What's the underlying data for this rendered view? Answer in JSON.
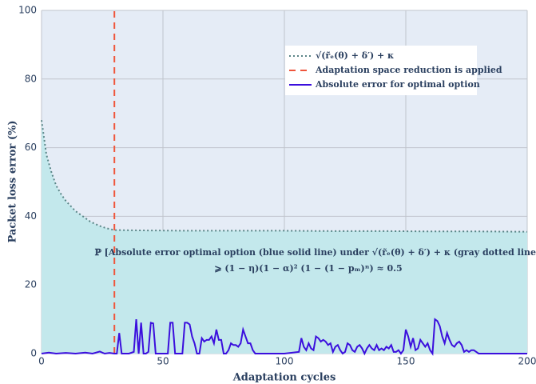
{
  "chart_data": {
    "type": "line",
    "xlabel": "Adaptation cycles",
    "ylabel": "Packet loss error (%)",
    "xlim": [
      0,
      200
    ],
    "ylim": [
      0,
      100
    ],
    "xticks": [
      0,
      50,
      100,
      150,
      200
    ],
    "yticks": [
      0,
      20,
      40,
      60,
      80,
      100
    ],
    "grid": true,
    "legend": "upper right",
    "annotations": [
      "ℙ [Absolute error optimal option (blue solid line) under √(r̃ₑ(θ) + δ′) + κ (gray dotted line)]",
      "⩾ (1 − η)(1 − α)² (1 − (1 − pₘ)ⁿ) ≈ 0.5"
    ],
    "series": [
      {
        "name": "√(r̃ₑ(θ) + δ′) + κ",
        "color": "#5a8587",
        "dash": "dot",
        "fill": "#c3e8ec",
        "x": [
          0,
          2,
          4,
          6,
          8,
          10,
          12,
          14,
          16,
          18,
          20,
          22,
          24,
          26,
          28,
          30,
          40,
          60,
          80,
          100,
          120,
          140,
          160,
          180,
          200
        ],
        "values": [
          68,
          58,
          53,
          49,
          46.5,
          44.5,
          43,
          41.5,
          40.5,
          39.5,
          38.5,
          37.8,
          37.2,
          36.7,
          36.3,
          36,
          35.9,
          35.8,
          35.8,
          35.8,
          35.7,
          35.7,
          35.6,
          35.6,
          35.5
        ]
      },
      {
        "name": "Adaptation space reduction is applied",
        "color": "#ef553b",
        "dash": "dash",
        "x": [
          30,
          30
        ],
        "values": [
          0,
          100
        ]
      },
      {
        "name": "Absolute error for optimal option",
        "color": "#3b0fdd",
        "dash": "solid",
        "x": [
          0,
          3,
          6,
          10,
          14,
          18,
          21,
          24,
          26,
          28,
          30,
          31,
          32,
          33,
          36,
          38,
          39,
          40,
          41,
          42,
          43,
          44,
          45,
          46,
          47,
          52,
          53,
          54,
          55,
          56,
          58,
          59,
          60,
          61,
          62,
          63,
          64,
          65,
          66,
          67,
          68,
          69,
          70,
          71,
          72,
          73,
          74,
          75,
          76,
          77,
          78,
          79,
          80,
          81,
          82,
          83,
          84,
          85,
          86,
          87,
          88,
          95,
          100,
          106,
          107,
          108,
          109,
          110,
          111,
          112,
          113,
          114,
          115,
          116,
          117,
          118,
          119,
          120,
          121,
          122,
          123,
          124,
          125,
          126,
          127,
          128,
          129,
          130,
          131,
          132,
          133,
          134,
          135,
          136,
          137,
          138,
          139,
          140,
          141,
          142,
          143,
          144,
          145,
          146,
          147,
          148,
          149,
          150,
          151,
          152,
          153,
          154,
          155,
          156,
          157,
          158,
          159,
          160,
          161,
          162,
          163,
          164,
          165,
          166,
          167,
          168,
          169,
          170,
          171,
          172,
          173,
          174,
          175,
          176,
          177,
          178,
          179,
          180,
          190,
          200
        ],
        "values": [
          0,
          0.3,
          0,
          0.2,
          0,
          0.3,
          0,
          0.6,
          0,
          0.2,
          0,
          0,
          6,
          0,
          0,
          0.5,
          10,
          0,
          9,
          0,
          0,
          0.5,
          9,
          8.8,
          0,
          0,
          9,
          9,
          0,
          0,
          0,
          9,
          9,
          8.5,
          5,
          3,
          0,
          0,
          4.5,
          3.5,
          4,
          4,
          5,
          3,
          7,
          4,
          4,
          0,
          0,
          1,
          3,
          2.5,
          2.5,
          2,
          3,
          7,
          5,
          3,
          3,
          1,
          0,
          0,
          0,
          0.5,
          4.5,
          2,
          1,
          3,
          1.5,
          1,
          5,
          4.5,
          3.5,
          4,
          3.5,
          2.5,
          3,
          0.5,
          2,
          2.5,
          1,
          0,
          0.5,
          3,
          2.5,
          1,
          0.5,
          2,
          2.5,
          1.5,
          0,
          1.5,
          2.5,
          1.5,
          1,
          2.5,
          1,
          1.5,
          1,
          2,
          1.5,
          2.5,
          0.5,
          0.5,
          1,
          0,
          1,
          7,
          5,
          2,
          4.5,
          1,
          1.5,
          4,
          3,
          2,
          3,
          1,
          0,
          10,
          9.5,
          8,
          5,
          3,
          6,
          4,
          2.5,
          2,
          3,
          3.5,
          2.5,
          0.5,
          1,
          0.5,
          1,
          1,
          0.5,
          0,
          0,
          0
        ]
      }
    ]
  }
}
